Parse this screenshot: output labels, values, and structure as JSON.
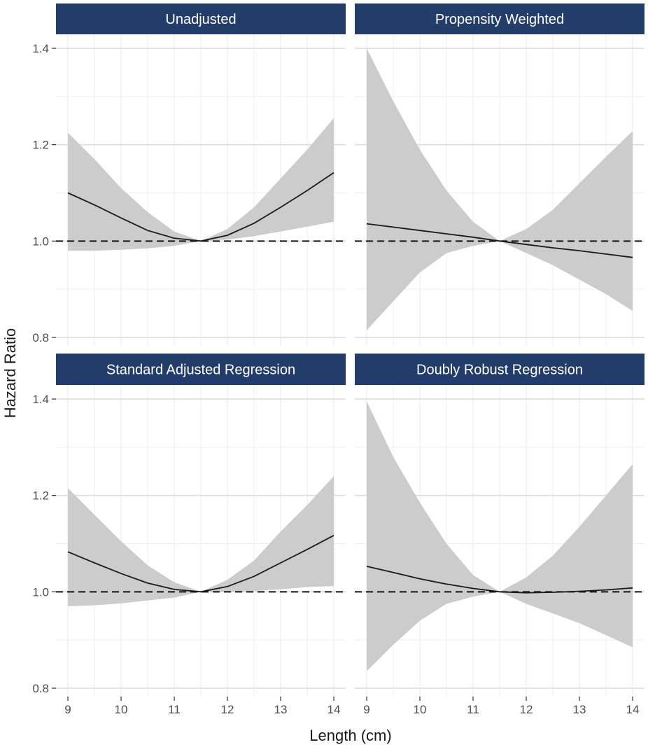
{
  "chart_data": {
    "type": "line",
    "xlabel": "Length (cm)",
    "ylabel": "Hazard Ratio",
    "xlim": [
      9,
      14
    ],
    "ylim": [
      0.8,
      1.4
    ],
    "x_ticks": [
      "9",
      "10",
      "11",
      "12",
      "13",
      "14"
    ],
    "y_ticks": [
      "0.8",
      "1.0",
      "1.2",
      "1.4"
    ],
    "reference_line": 1.0,
    "grid": true,
    "colors": {
      "strip": "#233d6b",
      "band": "#cccccc",
      "line": "#1a1a1a",
      "major_grid": "#dcdcdc",
      "minor_grid": "#efefef"
    },
    "panels": [
      {
        "title": "Unadjusted",
        "x": [
          9,
          9.5,
          10,
          10.5,
          11,
          11.5,
          12,
          12.5,
          13,
          13.5,
          14
        ],
        "estimate": [
          1.1,
          1.075,
          1.048,
          1.022,
          1.006,
          1.0,
          1.012,
          1.037,
          1.07,
          1.105,
          1.142
        ],
        "lower": [
          0.98,
          0.98,
          0.982,
          0.985,
          0.99,
          1.0,
          1.003,
          1.01,
          1.02,
          1.03,
          1.04
        ],
        "upper": [
          1.225,
          1.17,
          1.11,
          1.06,
          1.02,
          1.0,
          1.025,
          1.07,
          1.13,
          1.19,
          1.255
        ]
      },
      {
        "title": "Propensity Weighted",
        "x": [
          9,
          9.5,
          10,
          10.5,
          11,
          11.5,
          12,
          12.5,
          13,
          13.5,
          14
        ],
        "estimate": [
          1.036,
          1.029,
          1.022,
          1.015,
          1.008,
          1.0,
          0.993,
          0.986,
          0.98,
          0.973,
          0.966
        ],
        "lower": [
          0.815,
          0.875,
          0.935,
          0.975,
          0.99,
          1.0,
          0.975,
          0.95,
          0.92,
          0.89,
          0.855
        ],
        "upper": [
          1.4,
          1.29,
          1.19,
          1.105,
          1.04,
          1.0,
          1.025,
          1.065,
          1.12,
          1.175,
          1.228
        ]
      },
      {
        "title": "Standard Adjusted Regression",
        "x": [
          9,
          9.5,
          10,
          10.5,
          11,
          11.5,
          12,
          12.5,
          13,
          13.5,
          14
        ],
        "estimate": [
          1.083,
          1.06,
          1.038,
          1.018,
          1.005,
          1.0,
          1.011,
          1.032,
          1.06,
          1.088,
          1.117
        ],
        "lower": [
          0.97,
          0.972,
          0.976,
          0.982,
          0.988,
          1.0,
          1.0,
          1.002,
          1.005,
          1.01,
          1.012
        ],
        "upper": [
          1.215,
          1.16,
          1.105,
          1.055,
          1.02,
          1.0,
          1.025,
          1.065,
          1.125,
          1.18,
          1.24
        ]
      },
      {
        "title": "Doubly Robust Regression",
        "x": [
          9,
          9.5,
          10,
          10.5,
          11,
          11.5,
          12,
          12.5,
          13,
          13.5,
          14
        ],
        "estimate": [
          1.053,
          1.04,
          1.027,
          1.016,
          1.007,
          1.0,
          0.998,
          0.999,
          1.001,
          1.004,
          1.008
        ],
        "lower": [
          0.835,
          0.89,
          0.94,
          0.975,
          0.99,
          1.0,
          0.975,
          0.955,
          0.935,
          0.91,
          0.885
        ],
        "upper": [
          1.395,
          1.28,
          1.185,
          1.1,
          1.035,
          1.0,
          1.03,
          1.075,
          1.135,
          1.2,
          1.265
        ]
      }
    ]
  }
}
